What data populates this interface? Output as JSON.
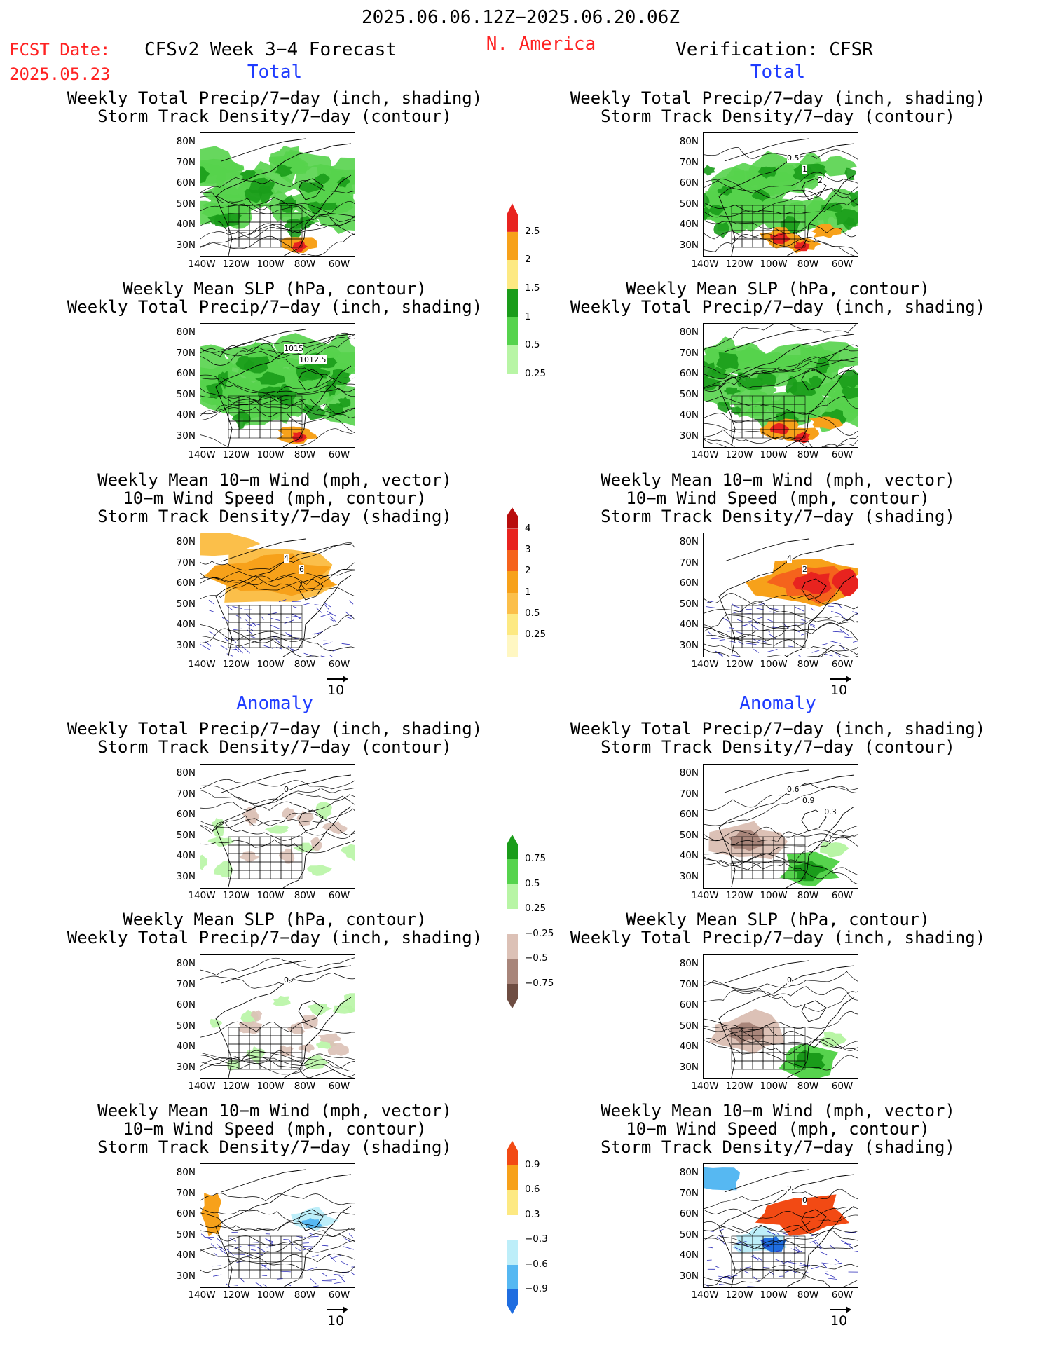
{
  "header": {
    "date_range": "2025.06.06.12Z−2025.06.20.06Z",
    "fcst_label": "FCST Date:",
    "fcst_date": "2025.05.23",
    "model": "CFSv2 Week 3−4 Forecast",
    "region": "N. America",
    "verification": "Verification: CFSR"
  },
  "sections": {
    "total": "Total",
    "anomaly": "Anomaly"
  },
  "titles": {
    "precip_storm": [
      "Weekly Total Precip/7−day (inch, shading)",
      "Storm Track Density/7−day (contour)"
    ],
    "slp_precip": [
      "Weekly Mean SLP (hPa, contour)",
      "Weekly Total Precip/7−day (inch, shading)"
    ],
    "wind_storm": [
      "Weekly Mean 10−m Wind (mph, vector)",
      "10−m Wind Speed (mph, contour)",
      "Storm Track Density/7−day (shading)"
    ]
  },
  "axes": {
    "lat": [
      "80N",
      "70N",
      "60N",
      "50N",
      "40N",
      "30N"
    ],
    "lon": [
      "140W",
      "120W",
      "100W",
      "80W",
      "60W"
    ]
  },
  "reference_vector": "10",
  "map_contour_labels": {
    "fc_slp_total": [
      "1015",
      "1012.5"
    ],
    "ob_storm_total": [
      "0.5",
      "1",
      "2"
    ],
    "fc_wind_total": [
      "4",
      "6"
    ],
    "ob_wind_total": [
      "4",
      "2"
    ],
    "fc_storm_anom": [
      "0"
    ],
    "ob_storm_anom": [
      "0.6",
      "0.9",
      "−0.3"
    ],
    "fc_slp_anom": [
      "0"
    ],
    "ob_slp_anom": [
      "0"
    ],
    "ob_wind_anom": [
      "2",
      "0"
    ]
  },
  "colorbars": {
    "precip_total": {
      "labels": [
        "2.5",
        "2",
        "1.5",
        "1",
        "0.5",
        "0.25"
      ],
      "colors": [
        "#e8231f",
        "#f7a11a",
        "#fde982",
        "#1a9c1a",
        "#56d34d",
        "#b8f5a5"
      ]
    },
    "storm_total": {
      "labels": [
        "4",
        "3",
        "2",
        "1",
        "0.5",
        "0.25"
      ],
      "colors": [
        "#b80d0d",
        "#e8231f",
        "#f5631c",
        "#f7a11a",
        "#fbbf4a",
        "#fde982",
        "#fff7c2"
      ]
    },
    "precip_anom": {
      "labels": [
        "0.75",
        "0.5",
        "0.25",
        "−0.25",
        "−0.5",
        "−0.75"
      ],
      "colors": [
        "#1a9c1a",
        "#56d34d",
        "#b8f5a5",
        "#ffffff",
        "#dcc1b6",
        "#a8857a",
        "#6e4d42"
      ]
    },
    "storm_anom": {
      "labels": [
        "0.9",
        "0.6",
        "0.3",
        "−0.3",
        "−0.6",
        "−0.9"
      ],
      "colors": [
        "#f24a14",
        "#f7a11a",
        "#fde982",
        "#ffffff",
        "#bdeef9",
        "#56b8f2",
        "#1f6de0"
      ]
    }
  }
}
